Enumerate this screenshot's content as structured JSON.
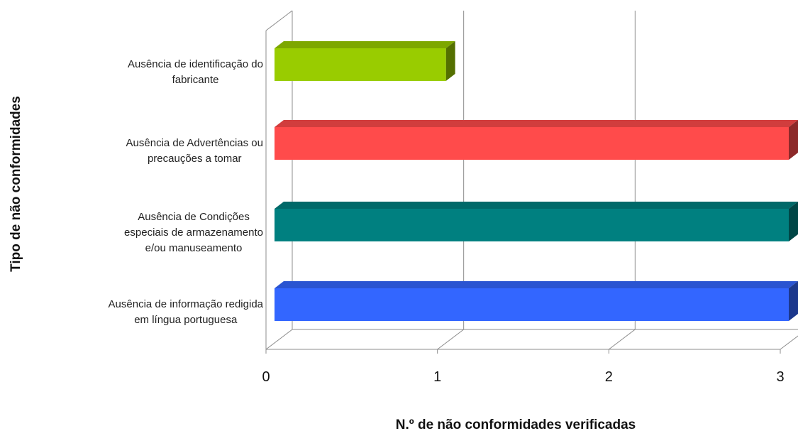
{
  "chart_data": {
    "type": "bar",
    "orientation": "horizontal",
    "style": "3d",
    "categories": [
      "Ausência de identificação do fabricante",
      "Ausência de Advertências ou precauções a tomar",
      "Ausência de Condições especiais de armazenamento e/ou manuseamento",
      "Ausência de informação redigida em língua portuguesa"
    ],
    "category_lines": [
      [
        "Ausência de identificação do",
        "fabricante"
      ],
      [
        "Ausência de Advertências ou",
        "precauções a tomar"
      ],
      [
        "Ausência de Condições",
        "especiais de armazenamento",
        "e/ou manuseamento"
      ],
      [
        "Ausência de informação redigida",
        "em língua portuguesa"
      ]
    ],
    "values": [
      1,
      3,
      3,
      3
    ],
    "colors": [
      "#99cc00",
      "#ff4b4b",
      "#008080",
      "#3366ff"
    ],
    "xlabel": "N.º de não conformidades verificadas",
    "ylabel": "Tipo de não conformidades",
    "xlim": [
      0,
      3
    ],
    "xticks": [
      "0",
      "1",
      "2",
      "3"
    ],
    "grid": true,
    "legend": "none"
  }
}
